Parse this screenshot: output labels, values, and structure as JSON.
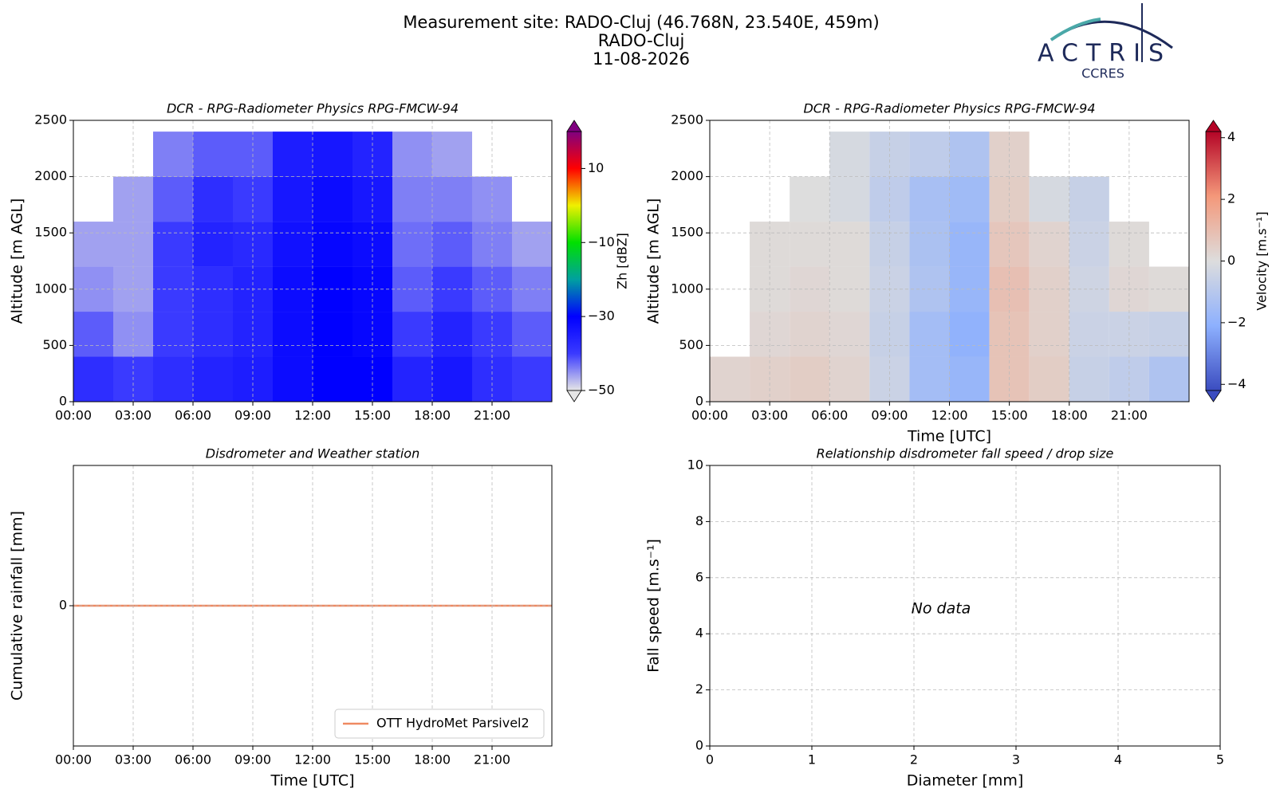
{
  "header": {
    "lines": [
      "Measurement site: RADO-Cluj (46.768N, 23.540E, 459m)",
      "RADO-Cluj",
      "11-08-2026"
    ]
  },
  "logo": {
    "name": "ACTRIS",
    "sub": "CCRES"
  },
  "chart_data": [
    {
      "type": "heatmap",
      "title": "DCR - RPG-Radiometer Physics RPG-FMCW-94",
      "ylabel": "Altitude [m AGL]",
      "xlim": [
        0,
        24
      ],
      "xticks": [
        {
          "value": 0,
          "label": "00:00"
        },
        {
          "value": 3,
          "label": "03:00"
        },
        {
          "value": 6,
          "label": "06:00"
        },
        {
          "value": 9,
          "label": "09:00"
        },
        {
          "value": 12,
          "label": "12:00"
        },
        {
          "value": 15,
          "label": "15:00"
        },
        {
          "value": 18,
          "label": "18:00"
        },
        {
          "value": 21,
          "label": "21:00"
        }
      ],
      "ylim": [
        0,
        2500
      ],
      "yticks": [
        0,
        500,
        1000,
        1500,
        2000,
        2500
      ],
      "grid": true,
      "x": [
        1,
        3,
        5,
        7,
        9,
        11,
        13,
        15,
        17,
        19,
        21,
        23
      ],
      "y": [
        200,
        600,
        1000,
        1400,
        1800,
        2200
      ],
      "z": [
        [
          -38,
          -40,
          -38,
          -36,
          -35,
          -32,
          -30,
          -30,
          -36,
          -34,
          -38,
          -40
        ],
        [
          -42,
          -45,
          -40,
          -38,
          -36,
          -32,
          -30,
          -31,
          -40,
          -36,
          -40,
          -42
        ],
        [
          -45,
          -46,
          -40,
          -38,
          -36,
          -32,
          -30,
          -31,
          -42,
          -40,
          -42,
          -44
        ],
        [
          -46,
          -46,
          -40,
          -36,
          -37,
          -33,
          -31,
          -32,
          -43,
          -42,
          -44,
          -46
        ],
        [
          null,
          -46,
          -42,
          -38,
          -40,
          -34,
          -32,
          -34,
          -44,
          -44,
          -45,
          null
        ],
        [
          null,
          null,
          -44,
          -42,
          -42,
          -35,
          -34,
          -36,
          -45,
          -46,
          null,
          null
        ]
      ],
      "zlim": [
        -50,
        20
      ],
      "zticks": [
        {
          "value": -50,
          "label": "−50"
        },
        {
          "value": -30,
          "label": "−30"
        },
        {
          "value": -10,
          "label": "−10"
        },
        10
      ],
      "zlabel": "Zh [dBZ]",
      "colormap": [
        "#e6e6e6",
        "#3a3aff",
        "#0000ff",
        "#00a0a0",
        "#00e000",
        "#f0f000",
        "#ff0000",
        "#800080"
      ]
    },
    {
      "type": "heatmap",
      "title": "DCR - RPG-Radiometer Physics RPG-FMCW-94",
      "ylabel": "Altitude [m AGL]",
      "xlabel": "Time [UTC]",
      "xlim": [
        0,
        24
      ],
      "xticks": [
        {
          "value": 0,
          "label": "00:00"
        },
        {
          "value": 3,
          "label": "03:00"
        },
        {
          "value": 6,
          "label": "06:00"
        },
        {
          "value": 9,
          "label": "09:00"
        },
        {
          "value": 12,
          "label": "12:00"
        },
        {
          "value": 15,
          "label": "15:00"
        },
        {
          "value": 18,
          "label": "18:00"
        },
        {
          "value": 21,
          "label": "21:00"
        }
      ],
      "ylim": [
        0,
        2500
      ],
      "yticks": [
        0,
        500,
        1000,
        1500,
        2000,
        2500
      ],
      "grid": true,
      "x": [
        1,
        3,
        5,
        7,
        9,
        11,
        13,
        15,
        17,
        19,
        21,
        23
      ],
      "y": [
        200,
        600,
        1000,
        1400,
        1800,
        2200
      ],
      "z": [
        [
          0.3,
          0.4,
          0.5,
          0.3,
          -0.5,
          -1.5,
          -1.8,
          0.8,
          0.5,
          -0.6,
          -0.8,
          -1.2
        ],
        [
          null,
          0.2,
          0.3,
          0.2,
          -0.6,
          -1.5,
          -2.0,
          0.8,
          0.4,
          -0.5,
          -0.5,
          -0.6
        ],
        [
          null,
          0.1,
          0.2,
          0.1,
          -0.5,
          -1.2,
          -1.8,
          0.9,
          0.4,
          -0.4,
          0.2,
          0.1
        ],
        [
          null,
          0.1,
          0.1,
          0.1,
          -0.6,
          -1.3,
          -1.8,
          0.7,
          0.3,
          -0.5,
          0.1,
          null
        ],
        [
          null,
          null,
          0.0,
          -0.2,
          -0.8,
          -1.4,
          -1.6,
          0.5,
          -0.2,
          -0.6,
          null,
          null
        ],
        [
          null,
          null,
          null,
          -0.2,
          -0.6,
          -0.8,
          -1.2,
          0.4,
          null,
          null,
          null,
          null
        ]
      ],
      "zlim": [
        -4.2,
        4.2
      ],
      "zticks": [
        {
          "value": -4,
          "label": "−4"
        },
        {
          "value": -2,
          "label": "−2"
        },
        0,
        2,
        4
      ],
      "zlabel": "Velocity [m.s⁻¹]",
      "colormap": [
        "#3b4cc0",
        "#8db0fe",
        "#dddddd",
        "#f4987a",
        "#b40426"
      ]
    },
    {
      "type": "line",
      "title": "Disdrometer and Weather station",
      "xlabel": "Time [UTC]",
      "ylabel": "Cumulative rainfall [mm]",
      "xlim": [
        0,
        24
      ],
      "xticks": [
        {
          "value": 0,
          "label": "00:00"
        },
        {
          "value": 3,
          "label": "03:00"
        },
        {
          "value": 6,
          "label": "06:00"
        },
        {
          "value": 9,
          "label": "09:00"
        },
        {
          "value": 12,
          "label": "12:00"
        },
        {
          "value": 15,
          "label": "15:00"
        },
        {
          "value": 18,
          "label": "18:00"
        },
        {
          "value": 21,
          "label": "21:00"
        }
      ],
      "ylim": [
        -1,
        1
      ],
      "yticks": [
        0
      ],
      "grid": true,
      "legend": "lower-right",
      "series": [
        {
          "name": "OTT HydroMet Parsivel2",
          "color": "#ef8a62",
          "x": [
            0,
            24
          ],
          "values": [
            0,
            0
          ]
        }
      ]
    },
    {
      "type": "scatter",
      "title": "Relationship disdrometer fall speed / drop size",
      "xlabel": "Diameter [mm]",
      "ylabel": "Fall speed [m.s⁻¹]",
      "xlim": [
        0,
        5
      ],
      "xticks": [
        0,
        1,
        2,
        3,
        4,
        5
      ],
      "ylim": [
        0,
        10
      ],
      "yticks": [
        0,
        2,
        4,
        6,
        8,
        10
      ],
      "grid": true,
      "annotation": "No data"
    }
  ]
}
